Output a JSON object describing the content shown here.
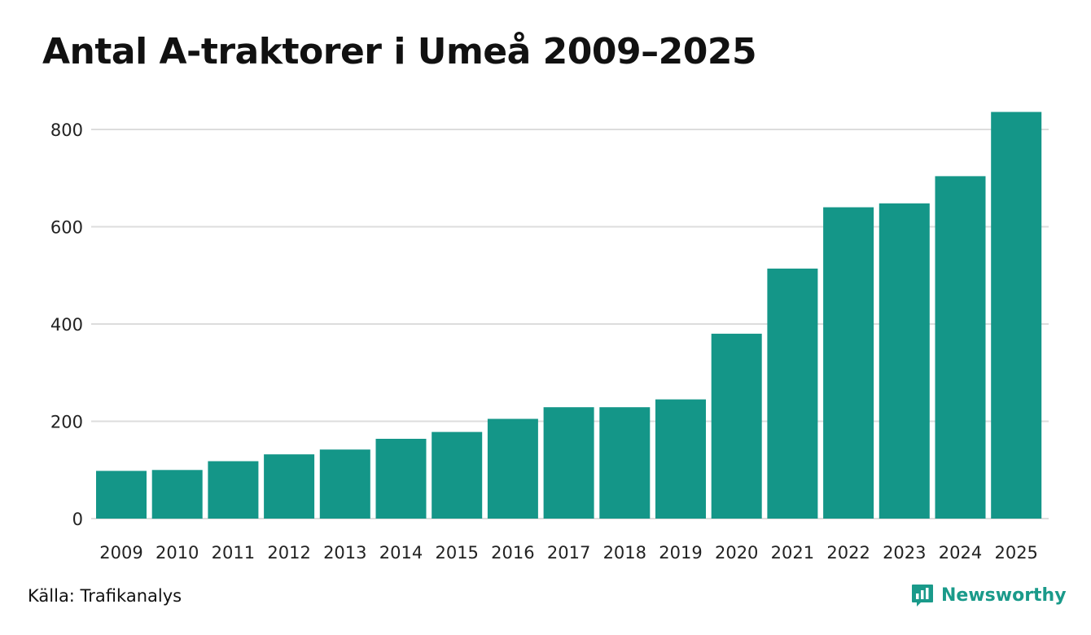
{
  "chart_data": {
    "type": "bar",
    "title": "Antal A-traktorer i Umeå 2009–2025",
    "xlabel": "",
    "ylabel": "",
    "categories": [
      "2009",
      "2010",
      "2011",
      "2012",
      "2013",
      "2014",
      "2015",
      "2016",
      "2017",
      "2018",
      "2019",
      "2020",
      "2021",
      "2022",
      "2023",
      "2024",
      "2025"
    ],
    "values": [
      98,
      100,
      118,
      132,
      142,
      164,
      178,
      205,
      229,
      229,
      245,
      380,
      514,
      640,
      648,
      704,
      836
    ],
    "ylim": [
      0,
      860
    ],
    "yticks": [
      0,
      200,
      400,
      600,
      800
    ],
    "grid": true,
    "bar_color": "#149688",
    "grid_color": "#dddddd"
  },
  "footer": {
    "source": "Källa: Trafikanalys",
    "brand": "Newsworthy",
    "brand_color": "#1a9a8a",
    "brand_icon": "bar-chart-speech-icon"
  }
}
